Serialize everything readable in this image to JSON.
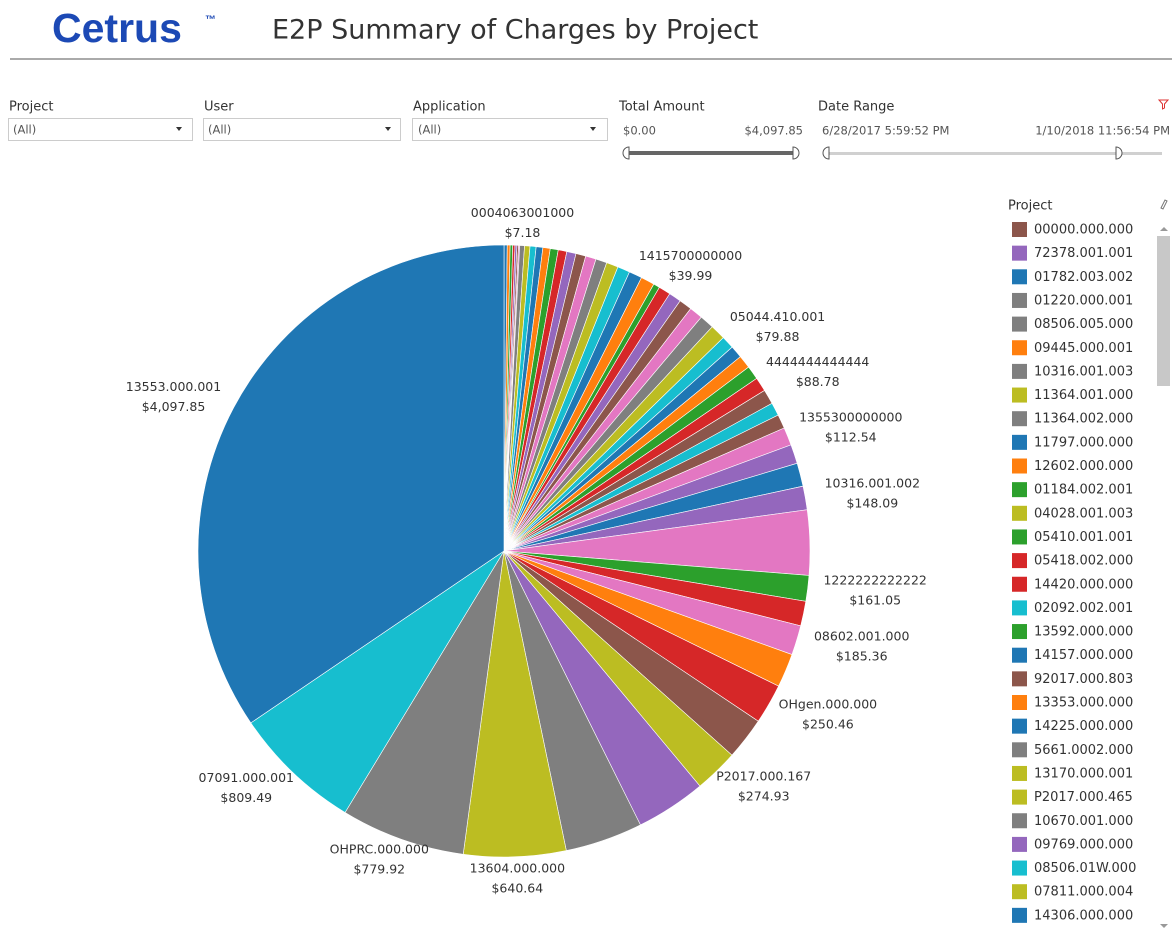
{
  "header": {
    "logo": "Cetrus",
    "logo_mark": "™",
    "title": "E2P Summary of Charges by Project"
  },
  "filters": {
    "project": {
      "label": "Project",
      "value": "(All)"
    },
    "user": {
      "label": "User",
      "value": "(All)"
    },
    "application": {
      "label": "Application",
      "value": "(All)"
    },
    "total_amount": {
      "label": "Total Amount",
      "min": "$0.00",
      "max": "$4,097.85"
    },
    "date_range": {
      "label": "Date Range",
      "start": "6/28/2017 5:59:52 PM",
      "end": "1/10/2018 11:56:54 PM"
    }
  },
  "chart_data": {
    "type": "pie",
    "categories": [
      null,
      null,
      null,
      null,
      null,
      null,
      "0004063001000",
      null,
      null,
      null,
      null,
      null,
      null,
      null,
      null,
      null,
      null,
      null,
      null,
      null,
      null,
      null,
      "1415700000000",
      null,
      null,
      null,
      null,
      null,
      null,
      "05044.410.001",
      null,
      null,
      null,
      "4444444444444",
      null,
      null,
      null,
      "1355300000000",
      null,
      null,
      "10316.001.002",
      null,
      "1222222222222",
      null,
      "08602.001.000",
      null,
      "OHgen.000.000",
      null,
      "P2017.000.167",
      null,
      null,
      "13604.000.000",
      "OHPRC.000.000",
      "07091.000.001",
      "13553.000.001"
    ],
    "values": [
      20,
      18,
      16,
      14,
      12,
      10,
      7.18,
      30,
      34,
      38,
      42,
      46,
      50,
      54,
      58,
      62,
      66,
      70,
      74,
      78,
      82,
      86,
      39.99,
      75,
      78,
      81,
      84,
      90,
      96,
      79.88,
      78,
      82,
      86,
      88.78,
      92,
      82,
      88,
      112.54,
      120,
      146,
      148.09,
      407,
      161.05,
      155,
      185.36,
      212,
      250.46,
      266,
      274.93,
      440,
      486,
      640.64,
      779.92,
      809.49,
      4097.85
    ],
    "value_labels": [
      null,
      null,
      null,
      null,
      null,
      null,
      "$7.18",
      null,
      null,
      null,
      null,
      null,
      null,
      null,
      null,
      null,
      null,
      null,
      null,
      null,
      null,
      null,
      "$39.99",
      null,
      null,
      null,
      null,
      null,
      null,
      "$79.88",
      null,
      null,
      null,
      "$88.78",
      null,
      null,
      null,
      "$112.54",
      null,
      null,
      "$148.09",
      null,
      "$161.05",
      null,
      "$185.36",
      null,
      "$250.46",
      null,
      "$274.93",
      null,
      null,
      "$640.64",
      "$779.92",
      "$809.49",
      "$4,097.85"
    ],
    "colors": [
      "#1f77b4",
      "#ff7f0e",
      "#2ca02c",
      "#d62728",
      "#9467bd",
      "#8c564b",
      "#e377c2",
      "#7f7f7f",
      "#bcbd22",
      "#17becf",
      "#1f77b4",
      "#ff7f0e",
      "#2ca02c",
      "#d62728",
      "#9467bd",
      "#8c564b",
      "#e377c2",
      "#7f7f7f",
      "#bcbd22",
      "#17becf",
      "#1f77b4",
      "#ff7f0e",
      "#2ca02c",
      "#d62728",
      "#9467bd",
      "#8c564b",
      "#e377c2",
      "#7f7f7f",
      "#bcbd22",
      "#17becf",
      "#1f77b4",
      "#ff7f0e",
      "#2ca02c",
      "#d62728",
      "#8c564b",
      "#17becf",
      "#8c564b",
      "#e377c2",
      "#9467bd",
      "#1f77b4",
      "#9467bd",
      "#e377c2",
      "#2ca02c",
      "#d62728",
      "#e377c2",
      "#ff7f0e",
      "#d62728",
      "#8c564b",
      "#bcbd22",
      "#9467bd",
      "#7f7f7f",
      "#bcbd22",
      "#7f7f7f",
      "#17becf",
      "#1f77b4"
    ]
  },
  "legend": {
    "title": "Project",
    "items": [
      {
        "name": "00000.000.000",
        "color": "#8c564b"
      },
      {
        "name": "72378.001.001",
        "color": "#9467bd"
      },
      {
        "name": "01782.003.002",
        "color": "#1f77b4"
      },
      {
        "name": "01220.000.001",
        "color": "#7f7f7f"
      },
      {
        "name": "08506.005.000",
        "color": "#7f7f7f"
      },
      {
        "name": "09445.000.001",
        "color": "#ff7f0e"
      },
      {
        "name": "10316.001.003",
        "color": "#7f7f7f"
      },
      {
        "name": "11364.001.000",
        "color": "#bcbd22"
      },
      {
        "name": "11364.002.000",
        "color": "#7f7f7f"
      },
      {
        "name": "11797.000.000",
        "color": "#1f77b4"
      },
      {
        "name": "12602.000.000",
        "color": "#ff7f0e"
      },
      {
        "name": "01184.002.001",
        "color": "#2ca02c"
      },
      {
        "name": "04028.001.003",
        "color": "#bcbd22"
      },
      {
        "name": "05410.001.001",
        "color": "#2ca02c"
      },
      {
        "name": "05418.002.000",
        "color": "#d62728"
      },
      {
        "name": "14420.000.000",
        "color": "#d62728"
      },
      {
        "name": "02092.002.001",
        "color": "#17becf"
      },
      {
        "name": "13592.000.000",
        "color": "#2ca02c"
      },
      {
        "name": "14157.000.000",
        "color": "#1f77b4"
      },
      {
        "name": "92017.000.803",
        "color": "#8c564b"
      },
      {
        "name": "13353.000.000",
        "color": "#ff7f0e"
      },
      {
        "name": "14225.000.000",
        "color": "#1f77b4"
      },
      {
        "name": "5661.0002.000",
        "color": "#7f7f7f"
      },
      {
        "name": "13170.000.001",
        "color": "#bcbd22"
      },
      {
        "name": "P2017.000.465",
        "color": "#bcbd22"
      },
      {
        "name": "10670.001.000",
        "color": "#7f7f7f"
      },
      {
        "name": "09769.000.000",
        "color": "#9467bd"
      },
      {
        "name": "08506.01W.000",
        "color": "#17becf"
      },
      {
        "name": "07811.000.004",
        "color": "#bcbd22"
      },
      {
        "name": "14306.000.000",
        "color": "#1f77b4"
      }
    ]
  }
}
